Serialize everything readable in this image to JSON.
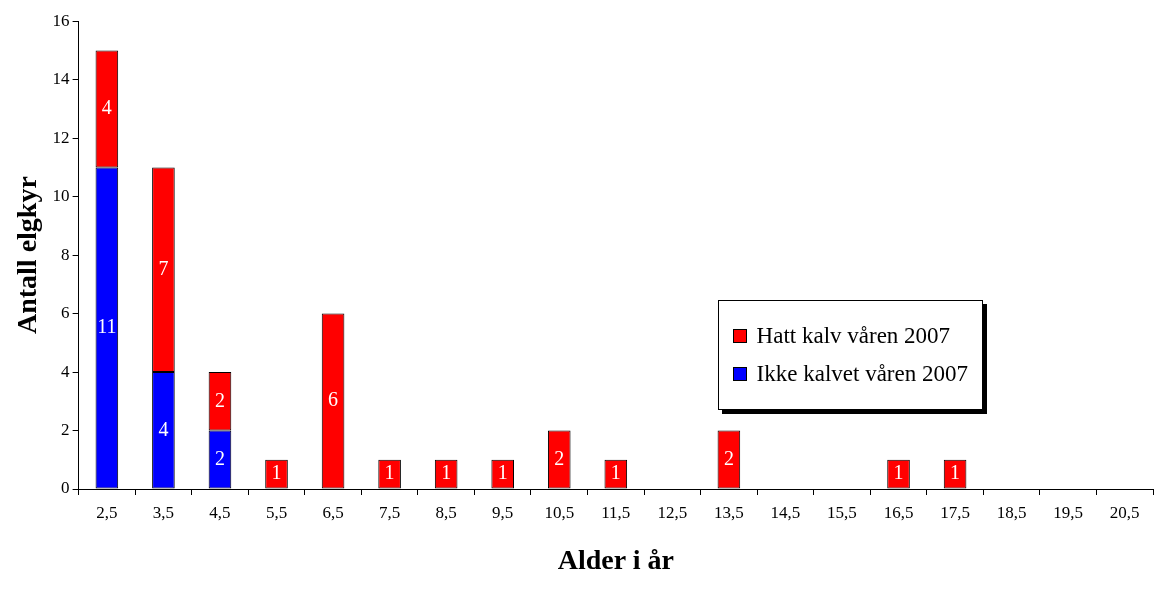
{
  "chart_data": {
    "type": "bar",
    "stacked": true,
    "xlabel": "Alder i år",
    "ylabel": "Antall elgkyr",
    "categories": [
      "2,5",
      "3,5",
      "4,5",
      "5,5",
      "6,5",
      "7,5",
      "8,5",
      "9,5",
      "10,5",
      "11,5",
      "12,5",
      "13,5",
      "14,5",
      "15,5",
      "16,5",
      "17,5",
      "18,5",
      "19,5",
      "20,5"
    ],
    "series": [
      {
        "name": "Ikke kalvet våren 2007",
        "color": "#0000ff",
        "values": [
          11,
          4,
          2,
          null,
          null,
          null,
          null,
          null,
          null,
          null,
          null,
          null,
          null,
          null,
          null,
          null,
          null,
          null,
          null
        ]
      },
      {
        "name": "Hatt kalv våren 2007",
        "color": "#ff0000",
        "values": [
          4,
          7,
          2,
          1,
          6,
          1,
          1,
          1,
          2,
          1,
          null,
          2,
          null,
          null,
          1,
          1,
          null,
          null,
          null
        ]
      }
    ],
    "ylim": [
      0,
      16
    ],
    "yticks": [
      0,
      2,
      4,
      6,
      8,
      10,
      12,
      14,
      16
    ],
    "grid": false,
    "legend": "right",
    "data_labels": true
  }
}
